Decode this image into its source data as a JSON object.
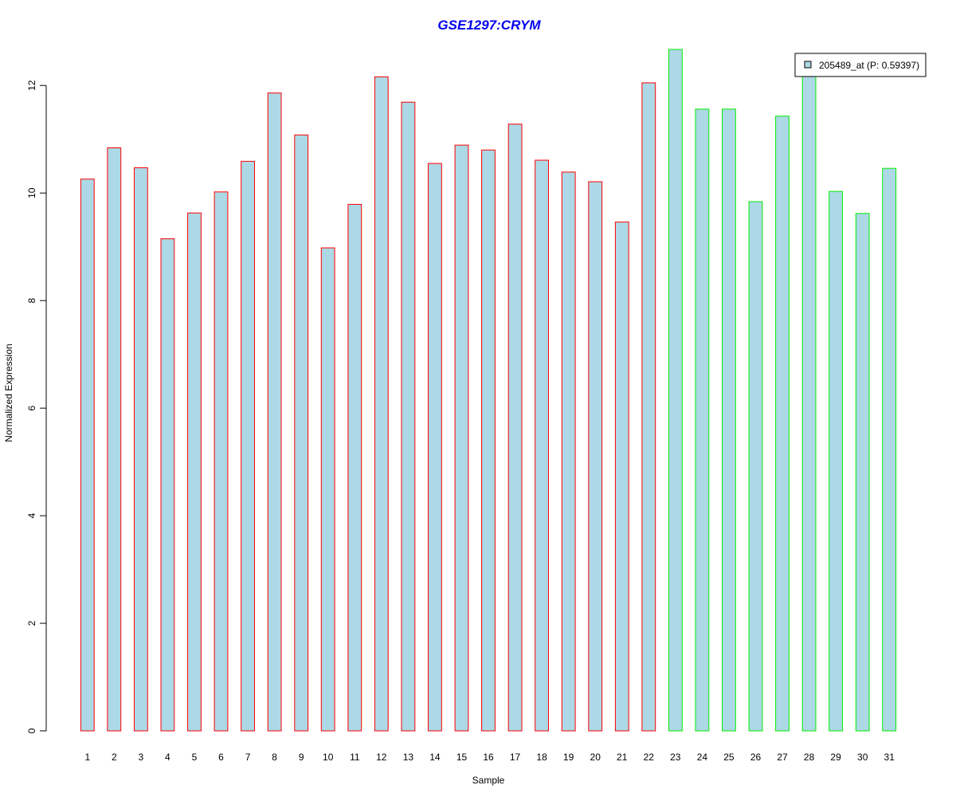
{
  "chart_data": {
    "type": "bar",
    "title": "GSE1297:CRYM",
    "xlabel": "Sample",
    "ylabel": "Normalized Expression",
    "ylim": [
      0,
      12.7
    ],
    "yticks": [
      0,
      2,
      4,
      6,
      8,
      10,
      12
    ],
    "grid": false,
    "legend_position": "top-right",
    "legend": {
      "label": "205489_at (P: 0.59397)"
    },
    "categories": [
      "1",
      "2",
      "3",
      "4",
      "5",
      "6",
      "7",
      "8",
      "9",
      "10",
      "11",
      "12",
      "13",
      "14",
      "15",
      "16",
      "17",
      "18",
      "19",
      "20",
      "21",
      "22",
      "23",
      "24",
      "25",
      "26",
      "27",
      "28",
      "29",
      "30",
      "31"
    ],
    "values": [
      10.26,
      10.84,
      10.47,
      9.15,
      9.63,
      10.02,
      10.59,
      11.86,
      11.08,
      8.98,
      9.79,
      12.16,
      11.69,
      10.55,
      10.89,
      10.8,
      11.28,
      10.61,
      10.39,
      10.21,
      9.46,
      12.05,
      12.67,
      11.56,
      11.56,
      9.84,
      11.43,
      12.59,
      10.03,
      9.62,
      10.46
    ],
    "group": [
      "a",
      "a",
      "a",
      "a",
      "a",
      "a",
      "a",
      "a",
      "a",
      "a",
      "a",
      "a",
      "a",
      "a",
      "a",
      "a",
      "a",
      "a",
      "a",
      "a",
      "a",
      "a",
      "b",
      "b",
      "b",
      "b",
      "b",
      "b",
      "b",
      "b",
      "b"
    ],
    "colors": {
      "bar_fill": "#add8e6",
      "border_a": "#ff0000",
      "border_b": "#00ee00",
      "title": "#0000ee",
      "axis": "#000000"
    }
  }
}
